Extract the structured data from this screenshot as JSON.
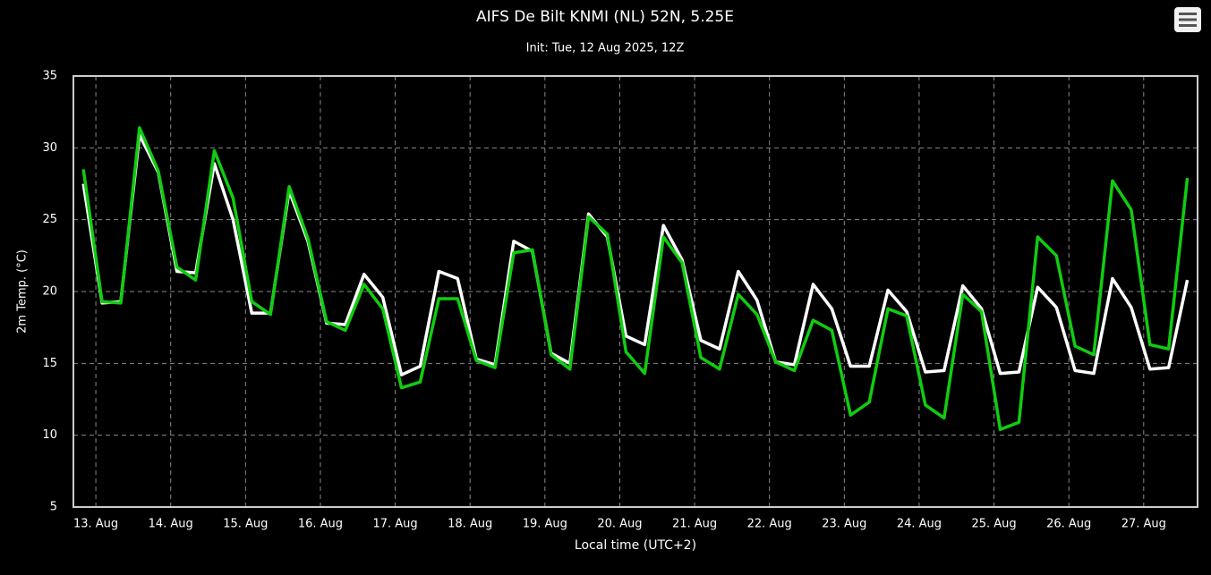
{
  "chart_data": {
    "type": "line",
    "title": "AIFS De Bilt KNMI (NL) 52N, 5.25E",
    "subtitle": "Init: Tue, 12 Aug 2025, 12Z",
    "y_label": "2m Temp. (°C)",
    "x_label": "Local time (UTC+2)",
    "x": [
      12.8333,
      13.0833,
      13.3333,
      13.5833,
      13.8333,
      14.0833,
      14.3333,
      14.5833,
      14.8333,
      15.0833,
      15.3333,
      15.5833,
      15.8333,
      16.0833,
      16.3333,
      16.5833,
      16.8333,
      17.0833,
      17.3333,
      17.5833,
      17.8333,
      18.0833,
      18.3333,
      18.5833,
      18.8333,
      19.0833,
      19.3333,
      19.5833,
      19.8333,
      20.0833,
      20.3333,
      20.5833,
      20.8333,
      21.0833,
      21.3333,
      21.5833,
      21.8333,
      22.0833,
      22.3333,
      22.5833,
      22.8333,
      23.0833,
      23.3333,
      23.5833,
      23.8333,
      24.0833,
      24.3333,
      24.5833,
      24.8333,
      25.0833,
      25.3333,
      25.5833,
      25.8333,
      26.0833,
      26.3333,
      26.5833,
      26.8333,
      27.0833,
      27.3333,
      27.5833
    ],
    "series": [
      {
        "color": "#ffffff",
        "values": [
          27.5,
          19.2,
          19.3,
          30.9,
          28.3,
          21.4,
          21.3,
          28.9,
          25.0,
          18.5,
          18.5,
          27.0,
          23.5,
          17.8,
          17.7,
          21.2,
          19.6,
          14.2,
          14.8,
          21.4,
          20.9,
          15.3,
          14.9,
          23.5,
          22.8,
          15.7,
          15.0,
          25.4,
          23.8,
          16.9,
          16.3,
          24.6,
          22.2,
          16.6,
          16.0,
          21.4,
          19.4,
          15.1,
          14.9,
          20.5,
          18.8,
          14.8,
          14.8,
          20.1,
          18.6,
          14.4,
          14.5,
          20.4,
          18.8,
          14.3,
          14.4,
          20.3,
          18.9,
          14.5,
          14.3,
          20.9,
          18.9,
          14.6,
          14.7,
          20.8
        ]
      },
      {
        "color": "#11cc11",
        "values": [
          28.5,
          19.3,
          19.2,
          31.4,
          28.4,
          21.7,
          20.8,
          29.8,
          26.5,
          19.3,
          18.4,
          27.3,
          23.7,
          17.9,
          17.3,
          20.5,
          18.8,
          13.3,
          13.7,
          19.5,
          19.5,
          15.2,
          14.7,
          22.7,
          22.9,
          15.6,
          14.6,
          25.2,
          24.0,
          15.8,
          14.3,
          23.8,
          22.0,
          15.4,
          14.6,
          19.8,
          18.4,
          15.1,
          14.5,
          18.0,
          17.3,
          11.4,
          12.3,
          18.8,
          18.3,
          12.1,
          11.2,
          19.8,
          18.6,
          10.4,
          10.9,
          23.8,
          22.5,
          16.2,
          15.6,
          27.7,
          25.7,
          16.3,
          16.0,
          27.9
        ]
      }
    ],
    "xlim": [
      12.7,
      27.72
    ],
    "xticks": [
      {
        "value": 13,
        "label": "13. Aug"
      },
      {
        "value": 14,
        "label": "14. Aug"
      },
      {
        "value": 15,
        "label": "15. Aug"
      },
      {
        "value": 16,
        "label": "16. Aug"
      },
      {
        "value": 17,
        "label": "17. Aug"
      },
      {
        "value": 18,
        "label": "18. Aug"
      },
      {
        "value": 19,
        "label": "19. Aug"
      },
      {
        "value": 20,
        "label": "20. Aug"
      },
      {
        "value": 21,
        "label": "21. Aug"
      },
      {
        "value": 22,
        "label": "22. Aug"
      },
      {
        "value": 23,
        "label": "23. Aug"
      },
      {
        "value": 24,
        "label": "24. Aug"
      },
      {
        "value": 25,
        "label": "25. Aug"
      },
      {
        "value": 26,
        "label": "26. Aug"
      },
      {
        "value": 27,
        "label": "27. Aug"
      }
    ],
    "ylim": [
      5,
      35
    ],
    "yticks": [
      5,
      10,
      15,
      20,
      25,
      30,
      35
    ],
    "grid": true
  }
}
